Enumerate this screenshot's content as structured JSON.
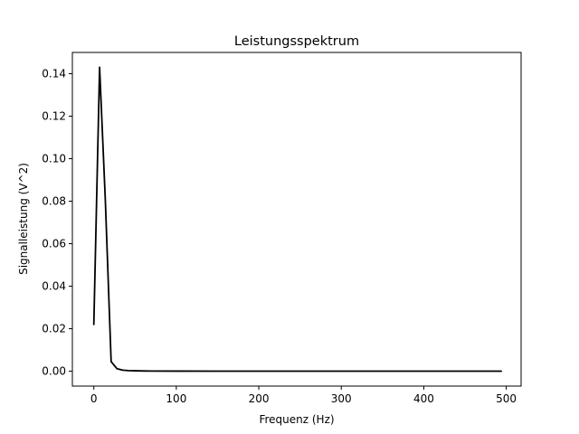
{
  "chart_data": {
    "type": "line",
    "title": "Leistungsspektrum",
    "xlabel": "Frequenz (Hz)",
    "ylabel": "Signalleistung  (V^2)",
    "xlim": [
      -26,
      518
    ],
    "ylim": [
      -0.007,
      0.15
    ],
    "xticks": [
      0,
      100,
      200,
      300,
      400,
      500
    ],
    "yticks": [
      0.0,
      0.02,
      0.04,
      0.06,
      0.08,
      0.1,
      0.12,
      0.14
    ],
    "ytick_labels": [
      "0.00",
      "0.02",
      "0.04",
      "0.06",
      "0.08",
      "0.10",
      "0.12",
      "0.14"
    ],
    "xtick_labels": [
      "0",
      "100",
      "200",
      "300",
      "400",
      "500"
    ],
    "grid": false,
    "series": [
      {
        "color": "#000000",
        "x": [
          0,
          7,
          14,
          21,
          28,
          35,
          42,
          49,
          56,
          63,
          70,
          100,
          150,
          200,
          250,
          300,
          350,
          400,
          450,
          494
        ],
        "y": [
          0.022,
          0.143,
          0.08,
          0.0045,
          0.0012,
          0.0005,
          0.0003,
          0.0002,
          0.00015,
          0.0001,
          8e-05,
          5e-05,
          3e-05,
          2e-05,
          1e-05,
          1e-05,
          1e-05,
          1e-05,
          1e-05,
          1e-05
        ]
      }
    ]
  }
}
